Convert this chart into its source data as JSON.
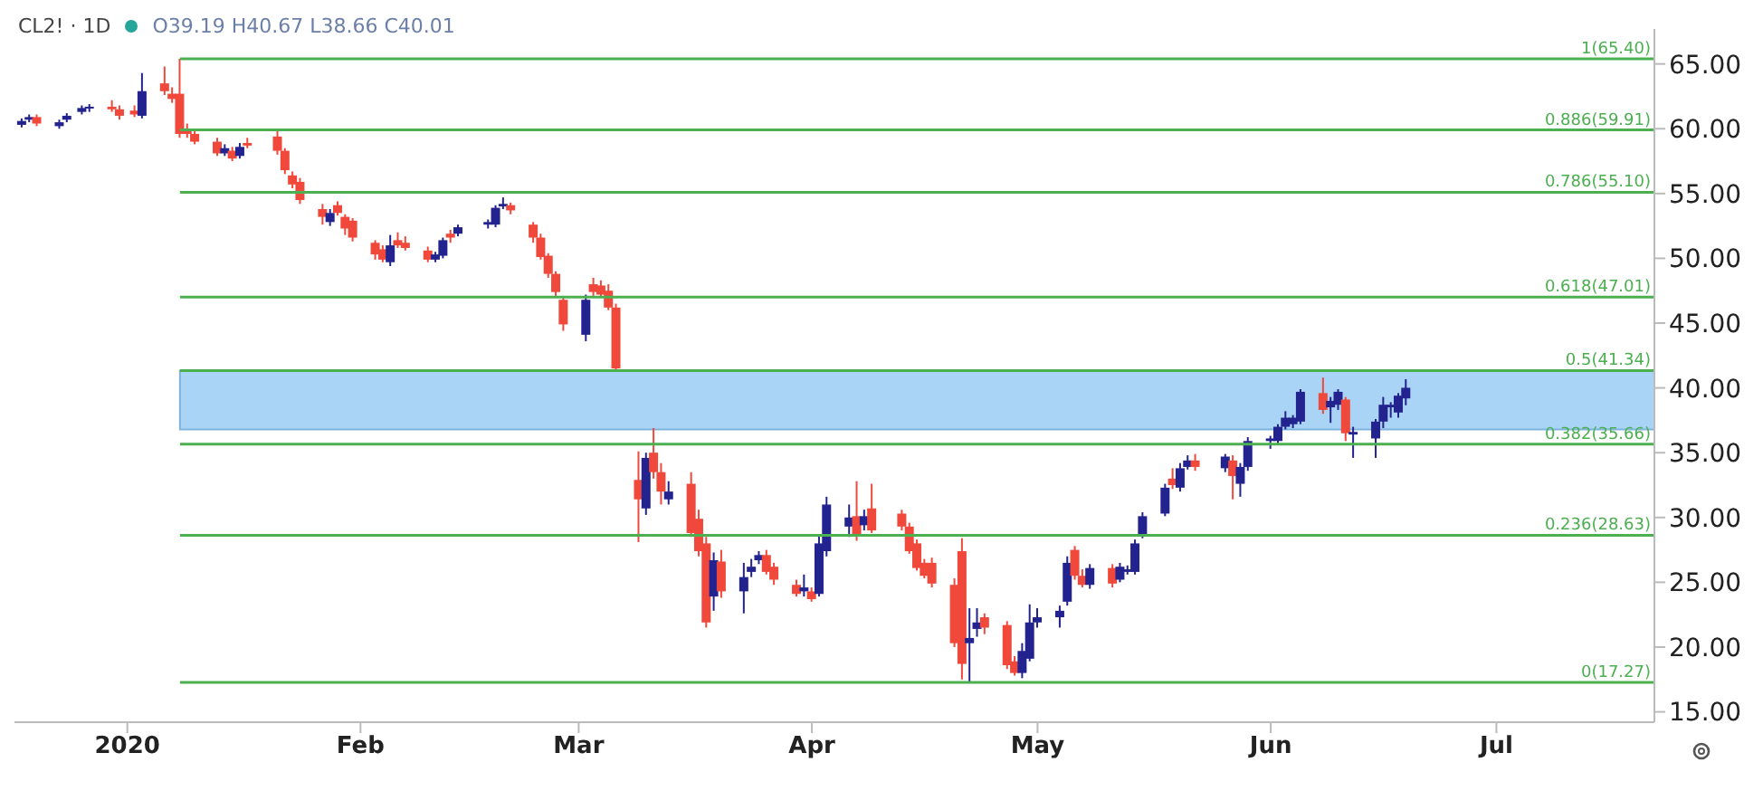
{
  "chart_data": {
    "type": "candlestick",
    "annotations": [
      "CL2! · 1D",
      "O39.19 H40.67 L38.66 C40.01"
    ],
    "x": [
      "2019-12-18",
      "2019-12-19",
      "2019-12-20",
      "2019-12-23",
      "2019-12-24",
      "2019-12-26",
      "2019-12-27",
      "2019-12-30",
      "2019-12-31",
      "2020-01-02",
      "2020-01-03",
      "2020-01-06",
      "2020-01-07",
      "2020-01-08",
      "2020-01-09",
      "2020-01-10",
      "2020-01-13",
      "2020-01-14",
      "2020-01-15",
      "2020-01-16",
      "2020-01-17",
      "2020-01-21",
      "2020-01-22",
      "2020-01-23",
      "2020-01-24",
      "2020-01-27",
      "2020-01-28",
      "2020-01-29",
      "2020-01-30",
      "2020-01-31",
      "2020-02-03",
      "2020-02-04",
      "2020-02-05",
      "2020-02-06",
      "2020-02-07",
      "2020-02-10",
      "2020-02-11",
      "2020-02-12",
      "2020-02-13",
      "2020-02-14",
      "2020-02-18",
      "2020-02-19",
      "2020-02-20",
      "2020-02-21",
      "2020-02-24",
      "2020-02-25",
      "2020-02-26",
      "2020-02-27",
      "2020-02-28",
      "2020-03-02",
      "2020-03-03",
      "2020-03-04",
      "2020-03-05",
      "2020-03-06",
      "2020-03-09",
      "2020-03-10",
      "2020-03-11",
      "2020-03-12",
      "2020-03-13",
      "2020-03-16",
      "2020-03-17",
      "2020-03-18",
      "2020-03-19",
      "2020-03-20",
      "2020-03-23",
      "2020-03-24",
      "2020-03-25",
      "2020-03-26",
      "2020-03-27",
      "2020-03-30",
      "2020-03-31",
      "2020-04-01",
      "2020-04-02",
      "2020-04-03",
      "2020-04-06",
      "2020-04-07",
      "2020-04-08",
      "2020-04-09",
      "2020-04-13",
      "2020-04-14",
      "2020-04-15",
      "2020-04-16",
      "2020-04-17",
      "2020-04-20",
      "2020-04-21",
      "2020-04-22",
      "2020-04-23",
      "2020-04-24",
      "2020-04-27",
      "2020-04-28",
      "2020-04-29",
      "2020-04-30",
      "2020-05-01",
      "2020-05-04",
      "2020-05-05",
      "2020-05-06",
      "2020-05-07",
      "2020-05-08",
      "2020-05-11",
      "2020-05-12",
      "2020-05-13",
      "2020-05-14",
      "2020-05-15",
      "2020-05-18",
      "2020-05-19",
      "2020-05-20",
      "2020-05-21",
      "2020-05-22",
      "2020-05-26",
      "2020-05-27",
      "2020-05-28",
      "2020-05-29",
      "2020-06-01",
      "2020-06-02",
      "2020-06-03",
      "2020-06-04",
      "2020-06-05",
      "2020-06-08",
      "2020-06-09",
      "2020-06-10",
      "2020-06-11",
      "2020-06-12",
      "2020-06-15",
      "2020-06-16",
      "2020-06-17",
      "2020-06-18",
      "2020-06-19"
    ],
    "ohlc": [
      [
        60.3,
        60.8,
        60.1,
        60.6
      ],
      [
        60.7,
        61.1,
        60.5,
        60.9
      ],
      [
        60.9,
        61.1,
        60.2,
        60.4
      ],
      [
        60.2,
        60.7,
        60.0,
        60.5
      ],
      [
        60.7,
        61.2,
        60.5,
        61.0
      ],
      [
        61.3,
        61.8,
        61.1,
        61.6
      ],
      [
        61.6,
        61.9,
        61.3,
        61.7
      ],
      [
        61.7,
        62.2,
        61.3,
        61.5
      ],
      [
        61.5,
        61.8,
        60.7,
        61.0
      ],
      [
        61.4,
        61.8,
        60.9,
        61.1
      ],
      [
        61.0,
        64.3,
        60.8,
        62.9
      ],
      [
        63.5,
        64.8,
        62.6,
        62.9
      ],
      [
        62.7,
        63.2,
        62.0,
        62.3
      ],
      [
        62.7,
        65.4,
        59.3,
        59.6
      ],
      [
        60.0,
        60.4,
        59.3,
        59.6
      ],
      [
        59.6,
        59.9,
        58.8,
        59.0
      ],
      [
        59.0,
        59.3,
        57.9,
        58.1
      ],
      [
        58.1,
        58.8,
        57.9,
        58.5
      ],
      [
        58.3,
        58.6,
        57.5,
        57.7
      ],
      [
        57.9,
        58.9,
        57.7,
        58.6
      ],
      [
        58.9,
        59.3,
        58.5,
        58.7
      ],
      [
        59.4,
        59.9,
        58.0,
        58.3
      ],
      [
        58.3,
        58.5,
        56.5,
        56.8
      ],
      [
        56.4,
        56.7,
        55.4,
        55.7
      ],
      [
        55.9,
        56.2,
        54.2,
        54.5
      ],
      [
        53.8,
        54.2,
        52.6,
        53.2
      ],
      [
        52.8,
        53.8,
        52.5,
        53.5
      ],
      [
        54.1,
        54.4,
        53.3,
        53.5
      ],
      [
        53.2,
        53.4,
        51.8,
        52.3
      ],
      [
        52.9,
        53.1,
        51.3,
        51.6
      ],
      [
        51.2,
        51.4,
        49.9,
        50.3
      ],
      [
        50.7,
        51.0,
        49.7,
        49.9
      ],
      [
        49.7,
        51.8,
        49.4,
        51.0
      ],
      [
        51.4,
        52.0,
        50.8,
        51.0
      ],
      [
        51.2,
        51.7,
        50.6,
        50.8
      ],
      [
        50.6,
        50.9,
        49.7,
        49.9
      ],
      [
        49.9,
        50.5,
        49.7,
        50.3
      ],
      [
        50.2,
        51.6,
        50.0,
        51.4
      ],
      [
        51.9,
        52.2,
        51.2,
        51.6
      ],
      [
        51.9,
        52.6,
        51.7,
        52.4
      ],
      [
        52.6,
        53.0,
        52.3,
        52.8
      ],
      [
        52.6,
        54.1,
        52.4,
        53.9
      ],
      [
        54.0,
        54.7,
        53.8,
        54.2
      ],
      [
        54.1,
        54.3,
        53.4,
        53.7
      ],
      [
        52.6,
        52.8,
        51.2,
        51.6
      ],
      [
        51.6,
        51.9,
        49.9,
        50.1
      ],
      [
        50.2,
        50.4,
        48.5,
        48.8
      ],
      [
        48.8,
        49.0,
        47.1,
        47.4
      ],
      [
        46.8,
        47.1,
        44.4,
        44.9
      ],
      [
        44.1,
        47.2,
        43.6,
        46.8
      ],
      [
        48.0,
        48.5,
        47.1,
        47.4
      ],
      [
        47.9,
        48.3,
        47.0,
        47.2
      ],
      [
        47.5,
        48.0,
        46.0,
        46.2
      ],
      [
        46.2,
        46.5,
        41.3,
        41.5
      ],
      [
        32.9,
        35.1,
        28.1,
        31.4
      ],
      [
        30.7,
        35.0,
        30.2,
        34.6
      ],
      [
        35.0,
        36.9,
        33.0,
        33.5
      ],
      [
        33.5,
        34.2,
        31.0,
        32.0
      ],
      [
        31.4,
        32.8,
        31.0,
        32.0
      ],
      [
        32.6,
        33.5,
        28.5,
        28.8
      ],
      [
        29.9,
        30.6,
        27.0,
        27.4
      ],
      [
        28.0,
        28.5,
        21.5,
        21.9
      ],
      [
        23.9,
        27.3,
        22.8,
        26.7
      ],
      [
        26.6,
        27.5,
        23.8,
        24.3
      ],
      [
        24.3,
        26.5,
        22.6,
        25.4
      ],
      [
        25.8,
        26.8,
        25.4,
        26.2
      ],
      [
        26.7,
        27.4,
        26.4,
        27.1
      ],
      [
        27.1,
        27.5,
        25.6,
        25.8
      ],
      [
        26.2,
        26.5,
        24.8,
        25.2
      ],
      [
        24.8,
        25.2,
        23.9,
        24.1
      ],
      [
        24.3,
        25.6,
        23.9,
        24.6
      ],
      [
        24.3,
        24.6,
        23.5,
        23.7
      ],
      [
        24.1,
        28.6,
        23.9,
        28.0
      ],
      [
        27.4,
        31.6,
        27.0,
        31.0
      ],
      [
        29.3,
        31.0,
        28.5,
        30.0
      ],
      [
        30.1,
        32.8,
        28.2,
        28.6
      ],
      [
        29.4,
        30.6,
        29.0,
        30.1
      ],
      [
        30.7,
        32.6,
        28.8,
        29.0
      ],
      [
        30.3,
        30.6,
        29.0,
        29.3
      ],
      [
        29.3,
        29.6,
        27.2,
        27.4
      ],
      [
        28.0,
        28.3,
        25.9,
        26.1
      ],
      [
        26.5,
        26.8,
        25.3,
        25.5
      ],
      [
        26.5,
        26.9,
        24.6,
        24.9
      ],
      [
        24.8,
        25.3,
        20.0,
        20.3
      ],
      [
        27.4,
        28.4,
        17.5,
        18.7
      ],
      [
        20.3,
        23.0,
        17.27,
        20.7
      ],
      [
        21.4,
        23.0,
        20.8,
        21.9
      ],
      [
        22.3,
        22.6,
        21.0,
        21.5
      ],
      [
        21.7,
        22.0,
        18.3,
        18.6
      ],
      [
        18.9,
        19.3,
        17.8,
        18.0
      ],
      [
        18.0,
        20.3,
        17.6,
        19.7
      ],
      [
        19.1,
        23.3,
        18.9,
        21.9
      ],
      [
        21.9,
        23.0,
        21.5,
        22.3
      ],
      [
        22.3,
        23.2,
        21.5,
        22.8
      ],
      [
        23.5,
        27.0,
        23.2,
        26.5
      ],
      [
        27.5,
        27.8,
        25.2,
        25.5
      ],
      [
        25.5,
        26.0,
        24.6,
        24.8
      ],
      [
        24.8,
        26.4,
        24.5,
        26.1
      ],
      [
        26.1,
        26.4,
        24.6,
        24.9
      ],
      [
        25.2,
        26.5,
        25.0,
        26.2
      ],
      [
        25.8,
        26.3,
        25.6,
        26.0
      ],
      [
        25.8,
        28.3,
        25.6,
        28.0
      ],
      [
        28.6,
        30.4,
        28.4,
        30.1
      ],
      [
        30.3,
        32.6,
        30.1,
        32.3
      ],
      [
        33.0,
        33.8,
        32.2,
        32.5
      ],
      [
        32.3,
        34.2,
        32.0,
        33.8
      ],
      [
        33.9,
        34.8,
        33.7,
        34.4
      ],
      [
        34.4,
        34.9,
        33.6,
        33.9
      ],
      [
        33.8,
        34.9,
        33.5,
        34.7
      ],
      [
        34.4,
        34.8,
        31.4,
        33.2
      ],
      [
        32.6,
        34.2,
        31.6,
        33.9
      ],
      [
        33.9,
        36.2,
        33.6,
        35.9
      ],
      [
        35.9,
        36.3,
        35.3,
        36.1
      ],
      [
        35.9,
        37.2,
        35.7,
        37.0
      ],
      [
        37.0,
        38.2,
        36.8,
        37.7
      ],
      [
        37.2,
        37.9,
        36.9,
        37.7
      ],
      [
        37.4,
        39.9,
        37.2,
        39.7
      ],
      [
        39.6,
        40.8,
        38.0,
        38.3
      ],
      [
        38.5,
        39.3,
        37.3,
        39.0
      ],
      [
        38.7,
        39.9,
        38.3,
        39.7
      ],
      [
        39.1,
        39.3,
        35.9,
        36.5
      ],
      [
        36.4,
        37.0,
        34.6,
        36.6
      ],
      [
        36.1,
        37.6,
        34.6,
        37.4
      ],
      [
        37.4,
        39.3,
        36.9,
        38.7
      ],
      [
        38.5,
        38.9,
        37.7,
        38.7
      ],
      [
        38.1,
        39.6,
        37.7,
        39.4
      ],
      [
        39.19,
        40.67,
        38.66,
        40.01
      ]
    ],
    "xlim": [
      "2019-12-17",
      "2020-07-22"
    ],
    "xticks": [
      {
        "value": "2020-01-01",
        "label": "2020"
      },
      {
        "value": "2020-02-01",
        "label": "Feb"
      },
      {
        "value": "2020-03-01",
        "label": "Mar"
      },
      {
        "value": "2020-04-01",
        "label": "Apr"
      },
      {
        "value": "2020-05-01",
        "label": "May"
      },
      {
        "value": "2020-06-01",
        "label": "Jun"
      },
      {
        "value": "2020-07-01",
        "label": "Jul"
      }
    ],
    "ylim": [
      14.2,
      67.7
    ],
    "yticks": [
      {
        "value": 15,
        "label": "15.00"
      },
      {
        "value": 20,
        "label": "20.00"
      },
      {
        "value": 25,
        "label": "25.00"
      },
      {
        "value": 30,
        "label": "30.00"
      },
      {
        "value": 35,
        "label": "35.00"
      },
      {
        "value": 40,
        "label": "40.00"
      },
      {
        "value": 45,
        "label": "45.00"
      },
      {
        "value": 50,
        "label": "50.00"
      },
      {
        "value": 55,
        "label": "55.00"
      },
      {
        "value": 60,
        "label": "60.00"
      },
      {
        "value": 65,
        "label": "65.00"
      }
    ],
    "ref_lines": [
      {
        "axis": "y",
        "value": 65.4,
        "label": "1(65.40)",
        "color": "#4caf50"
      },
      {
        "axis": "y",
        "value": 59.91,
        "label": "0.886(59.91)",
        "color": "#4caf50"
      },
      {
        "axis": "y",
        "value": 55.1,
        "label": "0.786(55.10)",
        "color": "#4caf50"
      },
      {
        "axis": "y",
        "value": 47.01,
        "label": "0.618(47.01)",
        "color": "#4caf50"
      },
      {
        "axis": "y",
        "value": 41.34,
        "label": "0.5(41.34)",
        "color": "#4caf50"
      },
      {
        "axis": "y",
        "value": 35.66,
        "label": "0.382(35.66)",
        "color": "#4caf50"
      },
      {
        "axis": "y",
        "value": 28.63,
        "label": "0.236(28.63)",
        "color": "#4caf50"
      },
      {
        "axis": "y",
        "value": 17.27,
        "label": "0(17.27)",
        "color": "#4caf50"
      }
    ],
    "bands": [
      {
        "axis": "y",
        "from": 36.8,
        "to": 41.34,
        "color": "#a9d4f6"
      }
    ]
  }
}
